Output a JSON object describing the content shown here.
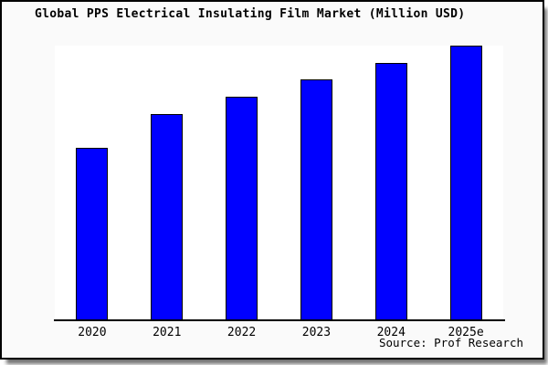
{
  "header": {
    "title": "Global PPS Electrical Insulating Film Market (Million USD)"
  },
  "source": {
    "label": "Source: Prof Research"
  },
  "chart_data": {
    "type": "bar",
    "title": "Global PPS Electrical Insulating Film Market (Million USD)",
    "categories": [
      "2020",
      "2021",
      "2022",
      "2023",
      "2024",
      "2025e"
    ],
    "values_pct_of_max": [
      62.7,
      75.0,
      81.4,
      87.7,
      93.7,
      100.0
    ],
    "value_axis_note": "no y-axis ticks or gridlines shown; values are bar heights relative to tallest (2025e) bar",
    "xlabel": "",
    "ylabel": "",
    "legend": "none",
    "gridlines": false,
    "bar_color": "#0000ff",
    "bar_border_color": "#000000",
    "plot_background": "#ffffff",
    "canvas_background": "#fafafa",
    "frame_border_color": "#000000"
  }
}
